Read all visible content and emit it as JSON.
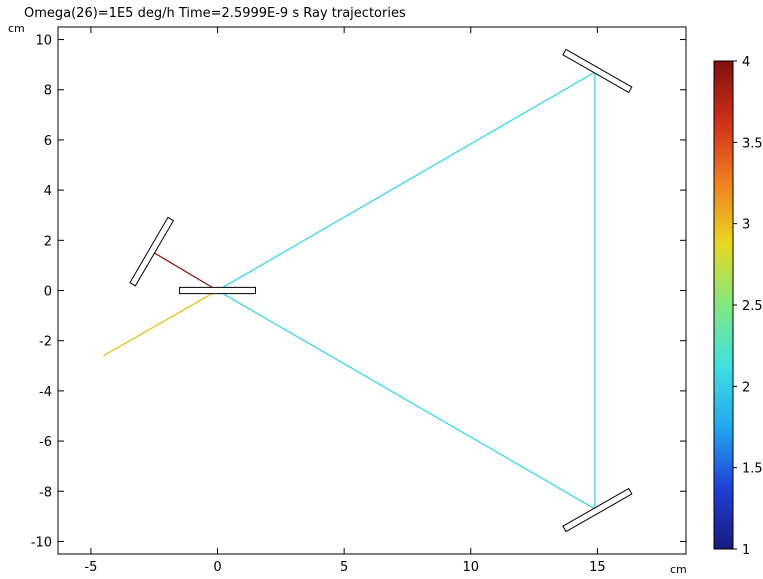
{
  "chart_data": {
    "type": "line",
    "title": "Omega(26)=1E5 deg/h Time=2.5999E-9 s Ray trajectories",
    "xlabel": "cm",
    "ylabel": "cm",
    "xlim": [
      -6.3,
      18.5
    ],
    "ylim": [
      -10.5,
      10.5
    ],
    "x_ticks": [
      -5,
      0,
      5,
      10,
      15
    ],
    "y_ticks": [
      -10,
      -8,
      -6,
      -4,
      -2,
      0,
      2,
      4,
      6,
      8,
      10
    ],
    "grid": false,
    "series": [
      {
        "color": "#e8c41a",
        "x": [
          -4.5,
          0
        ],
        "y": [
          -2.6,
          0
        ]
      },
      {
        "color": "#8b1a10",
        "x": [
          0,
          -2.5
        ],
        "y": [
          0,
          1.5
        ]
      },
      {
        "color": "#34d8f0",
        "x": [
          0,
          14.9
        ],
        "y": [
          0,
          8.7
        ]
      },
      {
        "color": "#34d8f0",
        "x": [
          14.9,
          14.9
        ],
        "y": [
          8.7,
          -8.7
        ]
      },
      {
        "color": "#34d8f0",
        "x": [
          14.9,
          0
        ],
        "y": [
          -8.7,
          0
        ]
      }
    ],
    "mirrors": [
      {
        "center": [
          -2.6,
          1.55
        ],
        "length": 3.0,
        "width": 0.25,
        "angle_deg": 60
      },
      {
        "center": [
          0,
          0
        ],
        "length": 3.0,
        "width": 0.25,
        "angle_deg": 0
      },
      {
        "center": [
          15.0,
          8.75
        ],
        "length": 3.0,
        "width": 0.25,
        "angle_deg": -30
      },
      {
        "center": [
          15.0,
          -8.75
        ],
        "length": 3.0,
        "width": 0.25,
        "angle_deg": 30
      }
    ],
    "colorbar": {
      "min": 1,
      "max": 4,
      "ticks": [
        "1",
        "1.5",
        "2",
        "2.5",
        "3",
        "3.5",
        "4"
      ],
      "colormap": [
        "#1a1a80",
        "#2040d8",
        "#22a8f0",
        "#40e0e0",
        "#80e880",
        "#e8d820",
        "#f08020",
        "#d03018",
        "#801010"
      ]
    }
  }
}
